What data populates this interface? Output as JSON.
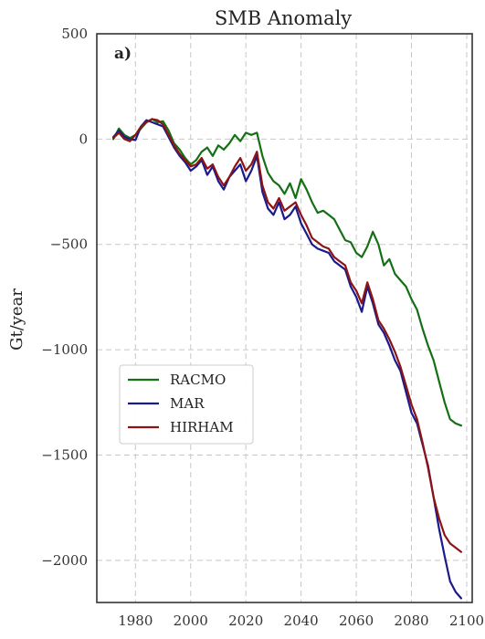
{
  "chart_data": {
    "type": "line",
    "title": "SMB Anomaly",
    "ylabel": "Gt/year",
    "xlabel": "",
    "panel_label": "a)",
    "xlim": [
      1966,
      2102
    ],
    "ylim": [
      -2200,
      500
    ],
    "xticks": [
      1980,
      2000,
      2020,
      2040,
      2060,
      2080,
      2100
    ],
    "yticks": [
      500,
      0,
      -500,
      -1000,
      -1500,
      -2000
    ],
    "ytick_labels": [
      "500",
      "0",
      "−500",
      "−1000",
      "−1500",
      "−2000"
    ],
    "grid": true,
    "legend_position": "center-left",
    "series": [
      {
        "name": "RACMO",
        "color": "#157015",
        "x": [
          1972,
          1974,
          1976,
          1978,
          1980,
          1982,
          1984,
          1986,
          1988,
          1990,
          1992,
          1994,
          1996,
          1998,
          2000,
          2002,
          2004,
          2006,
          2008,
          2010,
          2012,
          2014,
          2016,
          2018,
          2020,
          2022,
          2024,
          2026,
          2028,
          2030,
          2032,
          2034,
          2036,
          2038,
          2040,
          2042,
          2044,
          2046,
          2048,
          2050,
          2052,
          2054,
          2056,
          2058,
          2060,
          2062,
          2064,
          2066,
          2068,
          2070,
          2072,
          2074,
          2076,
          2078,
          2080,
          2082,
          2084,
          2086,
          2088,
          2090,
          2092,
          2094,
          2096,
          2098
        ],
        "values": [
          0,
          50,
          20,
          5,
          20,
          50,
          80,
          95,
          80,
          85,
          40,
          -20,
          -50,
          -90,
          -120,
          -100,
          -60,
          -40,
          -80,
          -30,
          -50,
          -20,
          20,
          -10,
          30,
          20,
          30,
          -80,
          -160,
          -200,
          -220,
          -260,
          -210,
          -280,
          -190,
          -240,
          -300,
          -350,
          -340,
          -360,
          -380,
          -430,
          -480,
          -490,
          -540,
          -560,
          -510,
          -440,
          -500,
          -600,
          -570,
          -640,
          -670,
          -700,
          -760,
          -810,
          -900,
          -980,
          -1050,
          -1150,
          -1250,
          -1330,
          -1350,
          -1360
        ]
      },
      {
        "name": "MAR",
        "color": "#1a1a8c",
        "x": [
          1972,
          1974,
          1976,
          1978,
          1980,
          1982,
          1984,
          1986,
          1988,
          1990,
          1992,
          1994,
          1996,
          1998,
          2000,
          2002,
          2004,
          2006,
          2008,
          2010,
          2012,
          2014,
          2016,
          2018,
          2020,
          2022,
          2024,
          2026,
          2028,
          2030,
          2032,
          2034,
          2036,
          2038,
          2040,
          2042,
          2044,
          2046,
          2048,
          2050,
          2052,
          2054,
          2056,
          2058,
          2060,
          2062,
          2064,
          2066,
          2068,
          2070,
          2072,
          2074,
          2076,
          2078,
          2080,
          2082,
          2084,
          2086,
          2088,
          2090,
          2092,
          2094,
          2096,
          2098
        ],
        "values": [
          10,
          40,
          10,
          0,
          -5,
          60,
          90,
          80,
          70,
          60,
          10,
          -40,
          -80,
          -110,
          -150,
          -130,
          -100,
          -170,
          -130,
          -200,
          -240,
          -180,
          -150,
          -120,
          -200,
          -150,
          -80,
          -250,
          -330,
          -360,
          -300,
          -380,
          -360,
          -320,
          -400,
          -450,
          -500,
          -520,
          -530,
          -540,
          -580,
          -600,
          -620,
          -700,
          -750,
          -820,
          -700,
          -780,
          -880,
          -920,
          -980,
          -1050,
          -1100,
          -1200,
          -1300,
          -1350,
          -1450,
          -1550,
          -1700,
          -1850,
          -1980,
          -2100,
          -2150,
          -2180
        ]
      },
      {
        "name": "HIRHAM",
        "color": "#8c1414",
        "x": [
          1972,
          1974,
          1976,
          1978,
          1980,
          1982,
          1984,
          1986,
          1988,
          1990,
          1992,
          1994,
          1996,
          1998,
          2000,
          2002,
          2004,
          2006,
          2008,
          2010,
          2012,
          2014,
          2016,
          2018,
          2020,
          2022,
          2024,
          2026,
          2028,
          2030,
          2032,
          2034,
          2036,
          2038,
          2040,
          2042,
          2044,
          2046,
          2048,
          2050,
          2052,
          2054,
          2056,
          2058,
          2060,
          2062,
          2064,
          2066,
          2068,
          2070,
          2072,
          2074,
          2076,
          2078,
          2080,
          2082,
          2084,
          2086,
          2088,
          2090,
          2092,
          2094,
          2096,
          2098
        ],
        "values": [
          5,
          30,
          0,
          -10,
          20,
          60,
          80,
          95,
          90,
          70,
          20,
          -30,
          -70,
          -100,
          -130,
          -120,
          -90,
          -140,
          -120,
          -180,
          -220,
          -180,
          -130,
          -90,
          -150,
          -120,
          -60,
          -220,
          -300,
          -330,
          -280,
          -340,
          -320,
          -300,
          -360,
          -410,
          -470,
          -490,
          -510,
          -520,
          -560,
          -580,
          -600,
          -680,
          -720,
          -780,
          -680,
          -760,
          -860,
          -900,
          -950,
          -1010,
          -1080,
          -1170,
          -1260,
          -1330,
          -1440,
          -1560,
          -1700,
          -1800,
          -1880,
          -1920,
          -1940,
          -1960
        ]
      }
    ]
  }
}
